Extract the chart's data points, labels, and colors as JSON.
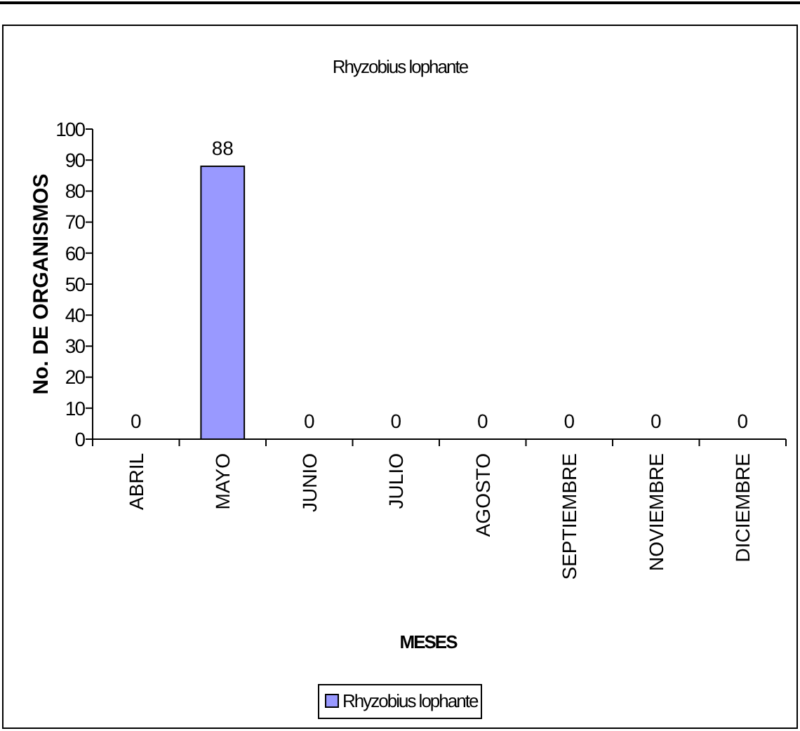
{
  "chart_data": {
    "type": "bar",
    "title": "Rhyzobius lophante",
    "xlabel": "MESES",
    "ylabel": "No. DE ORGANISMOS",
    "categories": [
      "ABRIL",
      "MAYO",
      "JUNIO",
      "JULIO",
      "AGOSTO",
      "SEPTIEMBRE",
      "NOVIEMBRE",
      "DICIEMBRE"
    ],
    "series": [
      {
        "name": "Rhyzobius lophante",
        "color": "#9999ff",
        "values": [
          0,
          88,
          0,
          0,
          0,
          0,
          0,
          0
        ]
      }
    ],
    "ylim": [
      0,
      100
    ],
    "yticks": [
      0,
      10,
      20,
      30,
      40,
      50,
      60,
      70,
      80,
      90,
      100
    ],
    "grid": false,
    "legend": "bottom",
    "data_labels": true
  }
}
